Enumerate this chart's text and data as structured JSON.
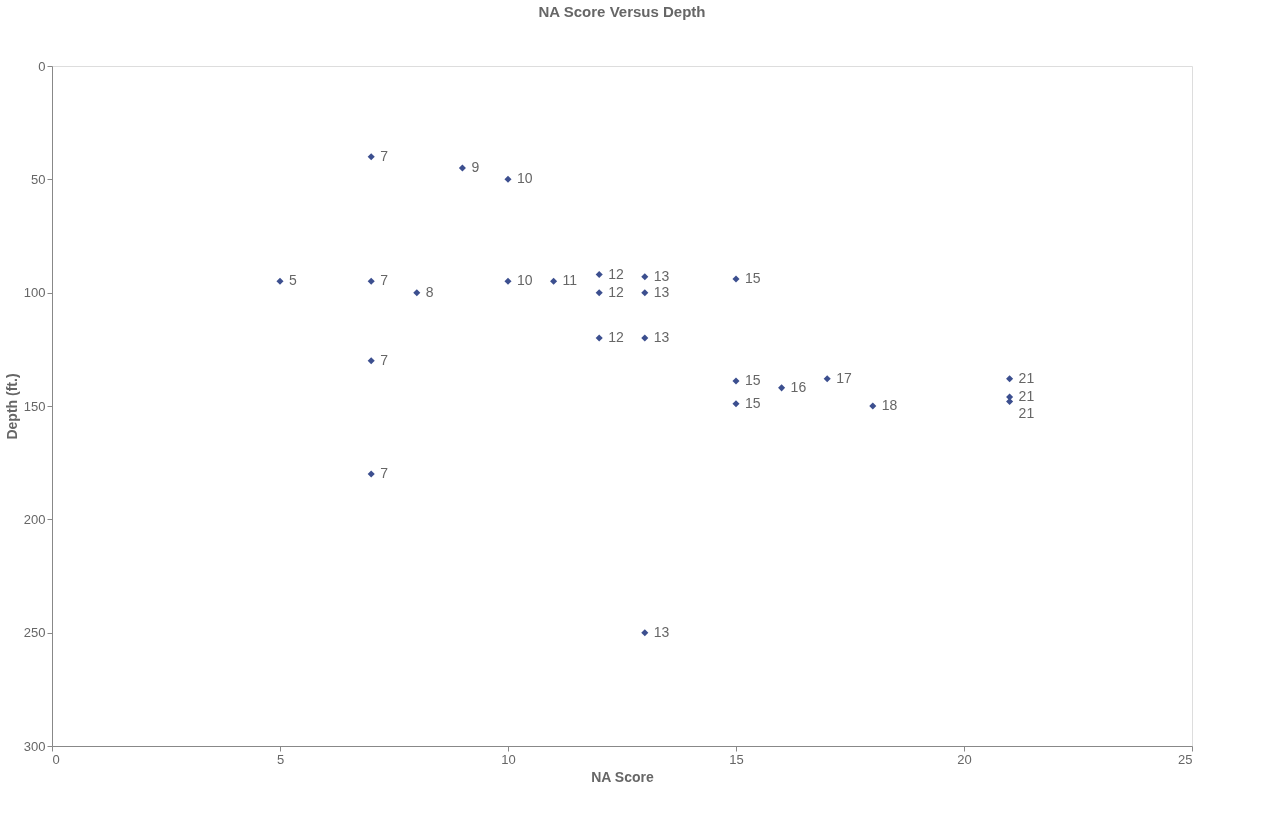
{
  "chart_data": {
    "type": "scatter",
    "title": "NA Score Versus Depth",
    "xlabel": "NA Score",
    "ylabel": "Depth (ft.)",
    "x": [
      7,
      9,
      10,
      5,
      7,
      8,
      10,
      11,
      12,
      12,
      13,
      13,
      12,
      13,
      7,
      15,
      15,
      16,
      17,
      15,
      18,
      21,
      21,
      21,
      7,
      13
    ],
    "series": [
      {
        "color": "#3c4f8f",
        "values": [
          40,
          45,
          50,
          95,
          95,
          100,
          95,
          95,
          92,
          100,
          93,
          100,
          120,
          120,
          130,
          94,
          139,
          142,
          138,
          149,
          150,
          138,
          146,
          148,
          180,
          250
        ]
      }
    ],
    "annotations": [
      {
        "text": "7",
        "x": 7,
        "y": 40
      },
      {
        "text": "9",
        "x": 9,
        "y": 45
      },
      {
        "text": "10",
        "x": 10,
        "y": 50
      },
      {
        "text": "5",
        "x": 5,
        "y": 95
      },
      {
        "text": "7",
        "x": 7,
        "y": 95
      },
      {
        "text": "8",
        "x": 8,
        "y": 100
      },
      {
        "text": "10",
        "x": 10,
        "y": 95
      },
      {
        "text": "11",
        "x": 11,
        "y": 95
      },
      {
        "text": "12",
        "x": 12,
        "y": 92
      },
      {
        "text": "12",
        "x": 12,
        "y": 100
      },
      {
        "text": "13",
        "x": 13,
        "y": 93
      },
      {
        "text": "13",
        "x": 13,
        "y": 100
      },
      {
        "text": "12",
        "x": 12,
        "y": 120
      },
      {
        "text": "13",
        "x": 13,
        "y": 120
      },
      {
        "text": "7",
        "x": 7,
        "y": 130
      },
      {
        "text": "15",
        "x": 15,
        "y": 94
      },
      {
        "text": "15",
        "x": 15,
        "y": 139
      },
      {
        "text": "16",
        "x": 16,
        "y": 142
      },
      {
        "text": "17",
        "x": 17,
        "y": 138
      },
      {
        "text": "15",
        "x": 15,
        "y": 149
      },
      {
        "text": "18",
        "x": 18,
        "y": 150
      },
      {
        "text": "21",
        "x": 21,
        "y": 138
      },
      {
        "text": "21",
        "x": 21,
        "y": 146
      },
      {
        "text": "21",
        "x": 21,
        "y": 148
      },
      {
        "text": "7",
        "x": 7,
        "y": 180
      },
      {
        "text": "13",
        "x": 13,
        "y": 250
      }
    ],
    "xlim": [
      0,
      25
    ],
    "xticks": [
      0,
      5,
      10,
      15,
      20,
      25
    ],
    "ylim": [
      300,
      0
    ],
    "yticks": [
      0,
      50,
      100,
      150,
      200,
      250,
      300
    ],
    "marker": "diamond",
    "grid": false
  }
}
